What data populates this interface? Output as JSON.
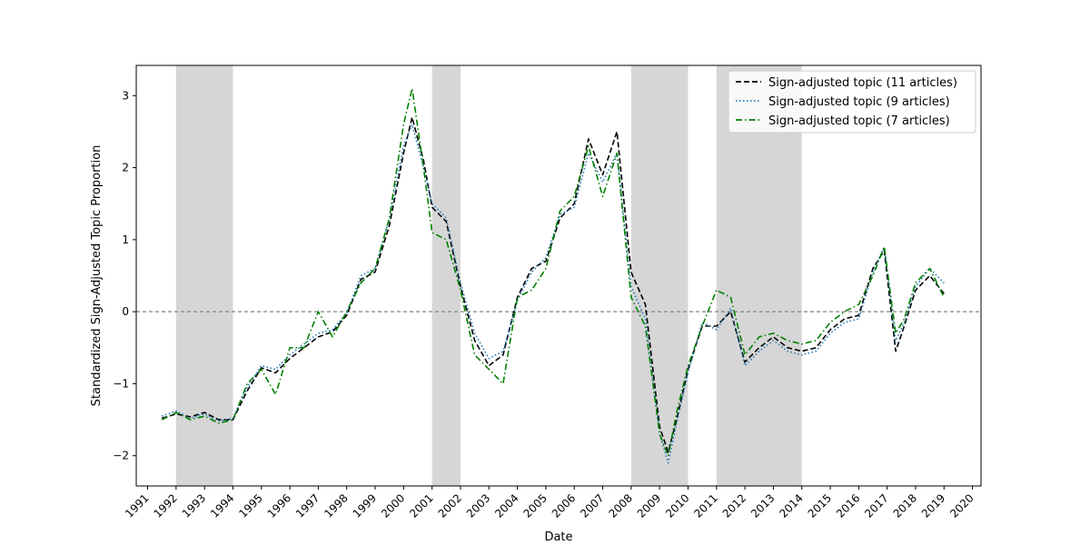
{
  "chart_data": {
    "type": "line",
    "title": "",
    "xlabel": "Date",
    "ylabel": "Standardized Sign-Adjusted Topic Proportion",
    "xlim": [
      1990.6,
      2020.3
    ],
    "ylim": [
      -2.42,
      3.42
    ],
    "x_ticks": [
      "1991",
      "1992",
      "1993",
      "1994",
      "1995",
      "1996",
      "1997",
      "1998",
      "1999",
      "2000",
      "2001",
      "2002",
      "2003",
      "2004",
      "2005",
      "2006",
      "2007",
      "2008",
      "2009",
      "2010",
      "2011",
      "2012",
      "2013",
      "2014",
      "2015",
      "2016",
      "2017",
      "2018",
      "2019",
      "2020"
    ],
    "y_ticks": [
      -2,
      -1,
      0,
      1,
      2,
      3
    ],
    "y_tick_labels": [
      "−2",
      "−1",
      "0",
      "1",
      "2",
      "3"
    ],
    "grid": false,
    "legend_position": "top-right",
    "zero_line": {
      "y": 0,
      "style": "dashed",
      "color": "#808080"
    },
    "shaded_periods": [
      [
        1992.0,
        1994.0
      ],
      [
        2001.0,
        2002.0
      ],
      [
        2008.0,
        2010.0
      ],
      [
        2011.0,
        2014.0
      ]
    ],
    "shade_color": "#d6d6d6",
    "series": [
      {
        "name": "Sign-adjusted topic (11 articles)",
        "color": "#000000",
        "style": "dashed",
        "x": [
          1991.5,
          1992.0,
          1992.5,
          1993.0,
          1993.5,
          1994.0,
          1994.5,
          1995.0,
          1995.5,
          1996.0,
          1996.5,
          1997.0,
          1997.5,
          1998.0,
          1998.5,
          1999.0,
          1999.5,
          2000.0,
          2000.3,
          2000.7,
          2001.0,
          2001.5,
          2002.0,
          2002.5,
          2003.0,
          2003.5,
          2004.0,
          2004.5,
          2005.0,
          2005.5,
          2006.0,
          2006.5,
          2007.0,
          2007.5,
          2008.0,
          2008.5,
          2009.0,
          2009.3,
          2009.6,
          2010.0,
          2010.5,
          2011.0,
          2011.5,
          2012.0,
          2012.5,
          2013.0,
          2013.5,
          2014.0,
          2014.5,
          2015.0,
          2015.5,
          2016.0,
          2016.5,
          2016.9,
          2017.3,
          2017.6,
          2018.0,
          2018.5,
          2019.0
        ],
        "y": [
          -1.48,
          -1.42,
          -1.46,
          -1.4,
          -1.5,
          -1.5,
          -1.1,
          -0.78,
          -0.85,
          -0.65,
          -0.5,
          -0.35,
          -0.28,
          -0.05,
          0.45,
          0.55,
          1.2,
          2.2,
          2.7,
          2.1,
          1.45,
          1.25,
          0.35,
          -0.4,
          -0.75,
          -0.6,
          0.2,
          0.6,
          0.7,
          1.3,
          1.5,
          2.4,
          1.9,
          2.5,
          0.55,
          0.1,
          -1.6,
          -1.95,
          -1.5,
          -0.8,
          -0.2,
          -0.2,
          0.0,
          -0.7,
          -0.5,
          -0.35,
          -0.5,
          -0.55,
          -0.5,
          -0.25,
          -0.1,
          -0.05,
          0.6,
          0.85,
          -0.55,
          -0.2,
          0.3,
          0.5,
          0.25
        ]
      },
      {
        "name": "Sign-adjusted topic (9 articles)",
        "color": "#1f77b4",
        "style": "dotted",
        "x": [
          1991.5,
          1992.0,
          1992.5,
          1993.0,
          1993.5,
          1994.0,
          1994.5,
          1995.0,
          1995.5,
          1996.0,
          1996.5,
          1997.0,
          1997.5,
          1998.0,
          1998.5,
          1999.0,
          1999.5,
          2000.0,
          2000.3,
          2000.7,
          2001.0,
          2001.5,
          2002.0,
          2002.5,
          2003.0,
          2003.5,
          2004.0,
          2004.5,
          2005.0,
          2005.5,
          2006.0,
          2006.5,
          2007.0,
          2007.5,
          2008.0,
          2008.5,
          2009.0,
          2009.3,
          2009.6,
          2010.0,
          2010.5,
          2011.0,
          2011.5,
          2012.0,
          2012.5,
          2013.0,
          2013.5,
          2014.0,
          2014.5,
          2015.0,
          2015.5,
          2016.0,
          2016.5,
          2016.9,
          2017.3,
          2017.6,
          2018.0,
          2018.5,
          2019.0
        ],
        "y": [
          -1.45,
          -1.38,
          -1.48,
          -1.42,
          -1.52,
          -1.48,
          -1.05,
          -0.75,
          -0.8,
          -0.6,
          -0.45,
          -0.3,
          -0.25,
          -0.02,
          0.5,
          0.6,
          1.3,
          2.3,
          2.6,
          2.0,
          1.5,
          1.3,
          0.4,
          -0.3,
          -0.65,
          -0.55,
          0.15,
          0.55,
          0.75,
          1.35,
          1.45,
          2.2,
          1.8,
          2.2,
          0.35,
          -0.1,
          -1.7,
          -2.1,
          -1.55,
          -0.85,
          -0.15,
          -0.25,
          0.05,
          -0.75,
          -0.55,
          -0.4,
          -0.55,
          -0.6,
          -0.55,
          -0.3,
          -0.15,
          -0.1,
          0.55,
          0.9,
          -0.4,
          -0.15,
          0.35,
          0.6,
          0.4
        ]
      },
      {
        "name": "Sign-adjusted topic (7 articles)",
        "color": "#008000",
        "style": "dashdot",
        "x": [
          1991.5,
          1992.0,
          1992.5,
          1993.0,
          1993.5,
          1994.0,
          1994.5,
          1995.0,
          1995.5,
          1996.0,
          1996.5,
          1997.0,
          1997.5,
          1998.0,
          1998.5,
          1999.0,
          1999.5,
          2000.0,
          2000.3,
          2000.7,
          2001.0,
          2001.5,
          2002.0,
          2002.5,
          2003.0,
          2003.5,
          2004.0,
          2004.5,
          2005.0,
          2005.5,
          2006.0,
          2006.5,
          2007.0,
          2007.5,
          2008.0,
          2008.5,
          2009.0,
          2009.3,
          2009.6,
          2010.0,
          2010.5,
          2011.0,
          2011.5,
          2012.0,
          2012.5,
          2013.0,
          2013.5,
          2014.0,
          2014.5,
          2015.0,
          2015.5,
          2016.0,
          2016.5,
          2016.9,
          2017.3,
          2017.6,
          2018.0,
          2018.5,
          2019.0
        ],
        "y": [
          -1.5,
          -1.4,
          -1.5,
          -1.45,
          -1.55,
          -1.5,
          -1.0,
          -0.8,
          -1.15,
          -0.5,
          -0.5,
          0.0,
          -0.35,
          0.0,
          0.4,
          0.6,
          1.3,
          2.6,
          3.1,
          2.0,
          1.1,
          1.0,
          0.3,
          -0.6,
          -0.8,
          -1.0,
          0.2,
          0.3,
          0.6,
          1.4,
          1.6,
          2.3,
          1.6,
          2.2,
          0.2,
          -0.2,
          -1.7,
          -2.0,
          -1.4,
          -0.75,
          -0.2,
          0.3,
          0.2,
          -0.6,
          -0.35,
          -0.3,
          -0.4,
          -0.45,
          -0.4,
          -0.15,
          0.0,
          0.1,
          0.5,
          0.9,
          -0.3,
          -0.1,
          0.4,
          0.6,
          0.2
        ]
      }
    ]
  }
}
